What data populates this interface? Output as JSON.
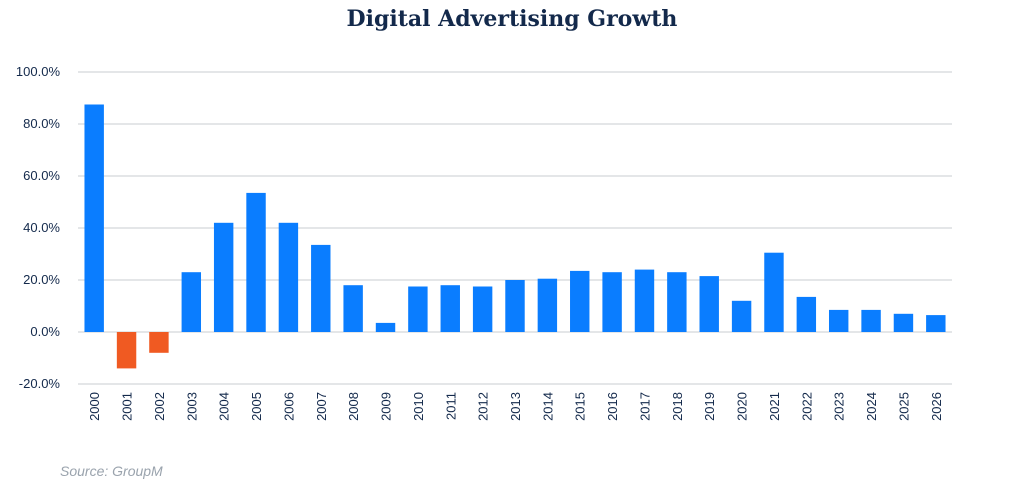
{
  "title": "Digital Advertising Growth",
  "source": "Source: GroupM",
  "colors": {
    "positive": "#0a7dff",
    "negative": "#f05a22",
    "text": "#13294b",
    "grid": "#c9ccd1"
  },
  "chart_data": {
    "type": "bar",
    "title": "Digital Advertising Growth",
    "xlabel": "",
    "ylabel": "",
    "ylim": [
      -20,
      100
    ],
    "ytick_values": [
      -20,
      0,
      20,
      40,
      60,
      80,
      100
    ],
    "yticks": [
      "-20.0%",
      "0.0%",
      "20.0%",
      "40.0%",
      "60.0%",
      "80.0%",
      "100.0%"
    ],
    "grid": true,
    "categories": [
      "2000",
      "2001",
      "2002",
      "2003",
      "2004",
      "2005",
      "2006",
      "2007",
      "2008",
      "2009",
      "2010",
      "2011",
      "2012",
      "2013",
      "2014",
      "2015",
      "2016",
      "2017",
      "2018",
      "2019",
      "2020",
      "2021",
      "2022",
      "2023",
      "2024",
      "2025",
      "2026"
    ],
    "values": [
      87.5,
      -14,
      -8,
      23,
      42,
      53.5,
      42,
      33.5,
      18,
      3.5,
      17.5,
      18,
      17.5,
      20,
      20.5,
      23.5,
      23,
      24,
      23,
      21.5,
      12,
      30.5,
      13.5,
      8.5,
      8.5,
      7,
      6.5
    ]
  }
}
